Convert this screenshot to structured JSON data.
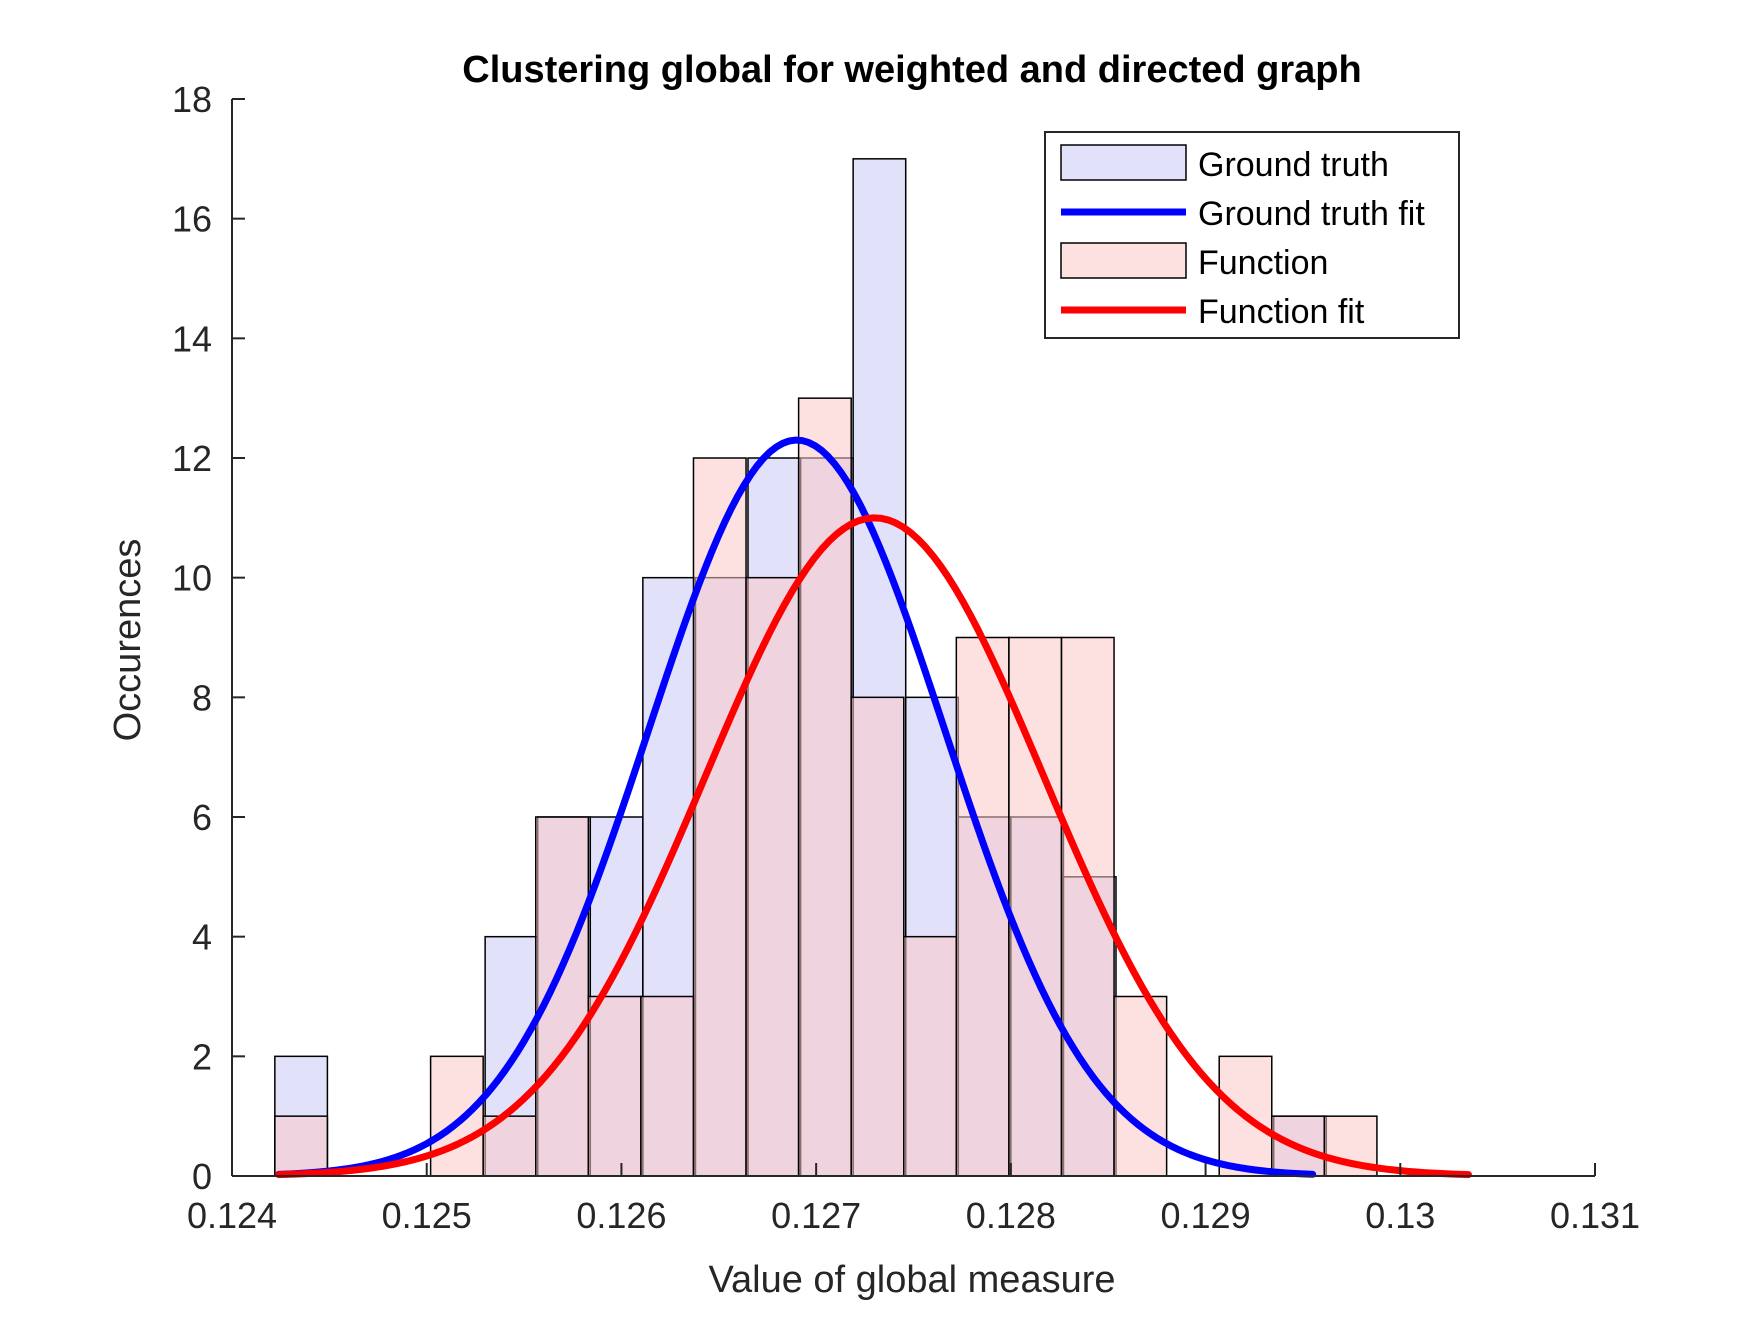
{
  "chart_data": {
    "type": "bar",
    "title": "Clustering global for weighted and directed graph",
    "xlabel": "Value of global measure",
    "ylabel": "Occurences",
    "xlim": [
      0.124,
      0.131
    ],
    "ylim": [
      0,
      18
    ],
    "xticks": [
      "0.124",
      "0.125",
      "0.126",
      "0.127",
      "0.128",
      "0.129",
      "0.13",
      "0.131"
    ],
    "yticks": [
      "0",
      "2",
      "4",
      "6",
      "8",
      "10",
      "12",
      "14",
      "16",
      "18"
    ],
    "grid": false,
    "legend_position": "top-right",
    "colors": {
      "ground_truth_fill": "#c9c9f5",
      "function_fill": "#fcc9c9",
      "ground_truth_line": "#0000ff",
      "function_line": "#ff0000",
      "bar_edge": "#000000"
    },
    "series": [
      {
        "name": "Ground truth",
        "kind": "histogram",
        "bins": [
          {
            "x0": 0.12422,
            "x1": 0.12449,
            "count": 2
          },
          {
            "x0": 0.1253,
            "x1": 0.12557,
            "count": 4
          },
          {
            "x0": 0.12557,
            "x1": 0.12584,
            "count": 6
          },
          {
            "x0": 0.12584,
            "x1": 0.12611,
            "count": 6
          },
          {
            "x0": 0.12611,
            "x1": 0.12638,
            "count": 10
          },
          {
            "x0": 0.12638,
            "x1": 0.12665,
            "count": 10
          },
          {
            "x0": 0.12665,
            "x1": 0.12692,
            "count": 12
          },
          {
            "x0": 0.12692,
            "x1": 0.12719,
            "count": 12
          },
          {
            "x0": 0.12719,
            "x1": 0.12746,
            "count": 17
          },
          {
            "x0": 0.12746,
            "x1": 0.12773,
            "count": 8
          },
          {
            "x0": 0.12773,
            "x1": 0.128,
            "count": 6
          },
          {
            "x0": 0.128,
            "x1": 0.12827,
            "count": 6
          },
          {
            "x0": 0.12827,
            "x1": 0.12854,
            "count": 5
          },
          {
            "x0": 0.12935,
            "x1": 0.12962,
            "count": 1
          }
        ]
      },
      {
        "name": "Ground truth fit",
        "kind": "normal_fit",
        "mean": 0.1269,
        "peak": 12.3,
        "sigma": 0.00076,
        "x_range": [
          0.12424,
          0.12955
        ]
      },
      {
        "name": "Function",
        "kind": "histogram",
        "bins": [
          {
            "x0": 0.12422,
            "x1": 0.12449,
            "count": 1
          },
          {
            "x0": 0.12502,
            "x1": 0.12529,
            "count": 2
          },
          {
            "x0": 0.12529,
            "x1": 0.12556,
            "count": 1
          },
          {
            "x0": 0.12556,
            "x1": 0.12583,
            "count": 6
          },
          {
            "x0": 0.12583,
            "x1": 0.1261,
            "count": 3
          },
          {
            "x0": 0.1261,
            "x1": 0.12637,
            "count": 3
          },
          {
            "x0": 0.12637,
            "x1": 0.12664,
            "count": 12
          },
          {
            "x0": 0.12664,
            "x1": 0.12691,
            "count": 10
          },
          {
            "x0": 0.12691,
            "x1": 0.12718,
            "count": 13
          },
          {
            "x0": 0.12718,
            "x1": 0.12745,
            "count": 8
          },
          {
            "x0": 0.12745,
            "x1": 0.12772,
            "count": 4
          },
          {
            "x0": 0.12772,
            "x1": 0.12799,
            "count": 9
          },
          {
            "x0": 0.12799,
            "x1": 0.12826,
            "count": 9
          },
          {
            "x0": 0.12826,
            "x1": 0.12853,
            "count": 9
          },
          {
            "x0": 0.12853,
            "x1": 0.1288,
            "count": 3
          },
          {
            "x0": 0.12907,
            "x1": 0.12934,
            "count": 2
          },
          {
            "x0": 0.12934,
            "x1": 0.12961,
            "count": 1
          },
          {
            "x0": 0.12961,
            "x1": 0.12988,
            "count": 1
          }
        ]
      },
      {
        "name": "Function fit",
        "kind": "normal_fit",
        "mean": 0.1273,
        "peak": 11.0,
        "sigma": 0.00087,
        "x_range": [
          0.12424,
          0.13035
        ]
      }
    ]
  }
}
